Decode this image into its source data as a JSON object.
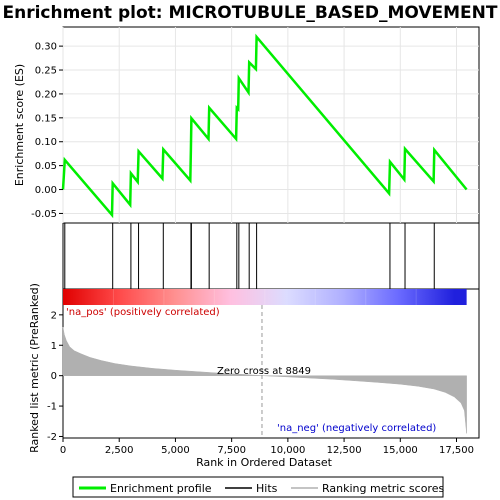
{
  "chart_data": {
    "type": "line",
    "title": "Enrichment plot: MICROTUBULE_BASED_MOVEMENT",
    "xlabel": "Rank in Ordered Dataset",
    "ylabel_top": "Enrichment score (ES)",
    "ylabel_bottom": "Ranked list metric (PreRanked)",
    "xlim": [
      0,
      18500
    ],
    "x_ticks": [
      0,
      2500,
      5000,
      7500,
      10000,
      12500,
      15000,
      17500
    ],
    "x_tick_labels": [
      "0",
      "2,500",
      "5,000",
      "7,500",
      "10,000",
      "12,500",
      "15,000",
      "17,500"
    ],
    "es_ylim": [
      -0.07,
      0.34
    ],
    "es_ticks": [
      -0.05,
      0.0,
      0.05,
      0.1,
      0.15,
      0.2,
      0.25,
      0.3
    ],
    "es_tick_labels": [
      "-0.05",
      "0.00",
      "0.05",
      "0.10",
      "0.15",
      "0.20",
      "0.25",
      "0.30"
    ],
    "metric_ylim": [
      -2.05,
      2.85
    ],
    "metric_ticks": [
      -2,
      -1,
      0,
      1,
      2
    ],
    "metric_tick_labels": [
      "-2",
      "-1",
      "0",
      "1",
      "2"
    ],
    "enrichment_profile": {
      "name": "Enrichment profile",
      "color": "#00ee00",
      "points": [
        [
          0,
          0.0
        ],
        [
          80,
          0.062
        ],
        [
          2180,
          -0.053
        ],
        [
          2210,
          0.013
        ],
        [
          2990,
          -0.032
        ],
        [
          3020,
          0.034
        ],
        [
          3320,
          0.016
        ],
        [
          3360,
          0.08
        ],
        [
          4420,
          0.023
        ],
        [
          4460,
          0.084
        ],
        [
          5660,
          0.019
        ],
        [
          5690,
          0.084
        ],
        [
          5710,
          0.149
        ],
        [
          6470,
          0.106
        ],
        [
          6500,
          0.171
        ],
        [
          7700,
          0.106
        ],
        [
          7730,
          0.171
        ],
        [
          7790,
          0.168
        ],
        [
          7820,
          0.233
        ],
        [
          8250,
          0.203
        ],
        [
          8280,
          0.266
        ],
        [
          8580,
          0.252
        ],
        [
          8610,
          0.319
        ],
        [
          14500,
          -0.008
        ],
        [
          14540,
          0.058
        ],
        [
          15180,
          0.021
        ],
        [
          15210,
          0.085
        ],
        [
          16480,
          0.017
        ],
        [
          16510,
          0.083
        ],
        [
          17950,
          0.0
        ]
      ]
    },
    "hits": [
      80,
      2210,
      3020,
      3360,
      4460,
      5690,
      5710,
      6500,
      7730,
      7820,
      8280,
      8610,
      14540,
      15210,
      16510
    ],
    "ranking_metric": {
      "name": "Ranking metric scores",
      "color": "#b0b0b0",
      "points": [
        [
          0,
          1.6
        ],
        [
          60,
          1.35
        ],
        [
          150,
          1.15
        ],
        [
          300,
          0.95
        ],
        [
          500,
          0.82
        ],
        [
          800,
          0.72
        ],
        [
          1200,
          0.6
        ],
        [
          1700,
          0.5
        ],
        [
          2300,
          0.4
        ],
        [
          3000,
          0.32
        ],
        [
          4000,
          0.24
        ],
        [
          5000,
          0.18
        ],
        [
          6000,
          0.13
        ],
        [
          7000,
          0.08
        ],
        [
          8000,
          0.04
        ],
        [
          8849,
          0.0
        ],
        [
          10000,
          -0.04
        ],
        [
          11000,
          -0.08
        ],
        [
          12000,
          -0.12
        ],
        [
          13000,
          -0.17
        ],
        [
          14000,
          -0.22
        ],
        [
          15000,
          -0.28
        ],
        [
          15800,
          -0.35
        ],
        [
          16500,
          -0.44
        ],
        [
          17000,
          -0.55
        ],
        [
          17400,
          -0.7
        ],
        [
          17700,
          -0.9
        ],
        [
          17850,
          -1.15
        ],
        [
          17950,
          -1.9
        ]
      ]
    },
    "zero_cross": 8849,
    "zero_cross_label": "Zero cross at 8849",
    "pos_label": "'na_pos' (positively correlated)",
    "neg_label": "'na_neg' (negatively correlated)",
    "legend": [
      {
        "label": "Enrichment profile",
        "color": "#00ee00"
      },
      {
        "label": "Hits",
        "color": "#000000"
      },
      {
        "label": "Ranking metric scores",
        "color": "#b0b0b0"
      }
    ],
    "colors": {
      "pos_text": "#cc0000",
      "neg_text": "#0000cc",
      "heat_stops": [
        "#e00000",
        "#ff4a4a",
        "#ff9090",
        "#ffc0e0",
        "#dcdcff",
        "#b0b0ff",
        "#6a6aff",
        "#2020dd"
      ]
    }
  }
}
